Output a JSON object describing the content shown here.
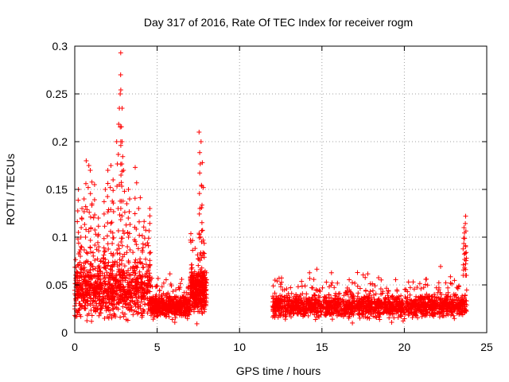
{
  "chart_data": {
    "type": "scatter",
    "title": "Day 317 of 2016, Rate Of TEC Index for receiver rogm",
    "xlabel": "GPS time / hours",
    "ylabel": "ROTI / TECUs",
    "xlim": [
      0,
      25
    ],
    "ylim": [
      0,
      0.3
    ],
    "x_ticks": [
      0,
      5,
      10,
      15,
      20,
      25
    ],
    "x_tick_labels": [
      "0",
      "5",
      "10",
      "15",
      "20",
      "25"
    ],
    "y_ticks": [
      0,
      0.05,
      0.1,
      0.15,
      0.2,
      0.25,
      0.3
    ],
    "y_tick_labels": [
      "0",
      "0.05",
      "0.1",
      "0.15",
      "0.2",
      "0.25",
      "0.3"
    ],
    "grid": true,
    "marker": "plus",
    "color": "#ff0000",
    "series": [
      {
        "name": "ROTI",
        "segments": [
          {
            "x_range": [
              0.0,
              4.6
            ],
            "base": 0.045,
            "spread": 0.035,
            "count": 900
          },
          {
            "x_range": [
              4.6,
              7.0
            ],
            "base": 0.028,
            "spread": 0.015,
            "count": 500
          },
          {
            "x_range": [
              7.0,
              8.0
            ],
            "base": 0.045,
            "spread": 0.03,
            "count": 350
          },
          {
            "x_range": [
              12.0,
              23.8
            ],
            "base": 0.028,
            "spread": 0.015,
            "count": 1800
          }
        ],
        "peaks": [
          {
            "x": 0.2,
            "y": 0.15
          },
          {
            "x": 0.4,
            "y": 0.13
          },
          {
            "x": 0.6,
            "y": 0.14
          },
          {
            "x": 0.7,
            "y": 0.18
          },
          {
            "x": 0.8,
            "y": 0.175
          },
          {
            "x": 1.0,
            "y": 0.17
          },
          {
            "x": 1.2,
            "y": 0.155
          },
          {
            "x": 1.4,
            "y": 0.12
          },
          {
            "x": 1.8,
            "y": 0.15
          },
          {
            "x": 2.0,
            "y": 0.17
          },
          {
            "x": 2.2,
            "y": 0.175
          },
          {
            "x": 2.3,
            "y": 0.16
          },
          {
            "x": 2.6,
            "y": 0.2
          },
          {
            "x": 2.7,
            "y": 0.25
          },
          {
            "x": 2.75,
            "y": 0.27
          },
          {
            "x": 2.8,
            "y": 0.293
          },
          {
            "x": 2.85,
            "y": 0.235
          },
          {
            "x": 2.9,
            "y": 0.2
          },
          {
            "x": 3.0,
            "y": 0.17
          },
          {
            "x": 3.2,
            "y": 0.15
          },
          {
            "x": 3.3,
            "y": 0.14
          },
          {
            "x": 3.7,
            "y": 0.173
          },
          {
            "x": 3.9,
            "y": 0.13
          },
          {
            "x": 4.5,
            "y": 0.13
          },
          {
            "x": 7.6,
            "y": 0.21
          },
          {
            "x": 7.65,
            "y": 0.2
          },
          {
            "x": 7.7,
            "y": 0.178
          },
          {
            "x": 7.75,
            "y": 0.152
          },
          {
            "x": 23.6,
            "y": 0.11
          },
          {
            "x": 23.7,
            "y": 0.122
          },
          {
            "x": 23.75,
            "y": 0.09
          }
        ]
      }
    ]
  }
}
